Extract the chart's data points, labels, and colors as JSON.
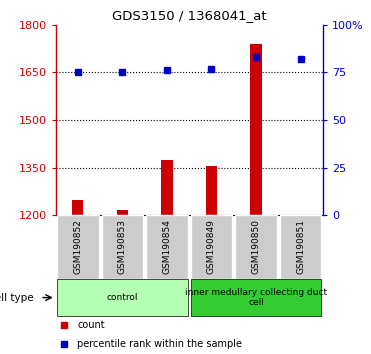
{
  "title": "GDS3150 / 1368041_at",
  "samples": [
    "GSM190852",
    "GSM190853",
    "GSM190854",
    "GSM190849",
    "GSM190850",
    "GSM190851"
  ],
  "counts": [
    1248,
    1215,
    1375,
    1355,
    1740,
    1200
  ],
  "percentile_ranks": [
    75,
    75,
    76,
    77,
    83,
    82
  ],
  "ylim_left": [
    1200,
    1800
  ],
  "ylim_right": [
    0,
    100
  ],
  "yticks_left": [
    1200,
    1350,
    1500,
    1650,
    1800
  ],
  "yticks_right": [
    0,
    25,
    50,
    75,
    100
  ],
  "ytick_labels_left": [
    "1200",
    "1350",
    "1500",
    "1650",
    "1800"
  ],
  "ytick_labels_right": [
    "0",
    "25",
    "50",
    "75",
    "100%"
  ],
  "bar_color": "#cc0000",
  "dot_color": "#0000cc",
  "groups": [
    {
      "label": "control",
      "indices": [
        0,
        1,
        2
      ],
      "color": "#b3ffb3"
    },
    {
      "label": "inner medullary collecting duct\ncell",
      "indices": [
        3,
        4,
        5
      ],
      "color": "#33cc33"
    }
  ],
  "cell_type_label": "cell type",
  "legend_items": [
    {
      "color": "#cc0000",
      "label": "count"
    },
    {
      "color": "#0000cc",
      "label": "percentile rank within the sample"
    }
  ],
  "left_axis_color": "#cc0000",
  "right_axis_color": "#0000cc",
  "bg_color": "#ffffff",
  "plot_bg_color": "#ffffff",
  "sample_box_color": "#cccccc",
  "bar_bottom": 1200,
  "bar_width": 0.25
}
